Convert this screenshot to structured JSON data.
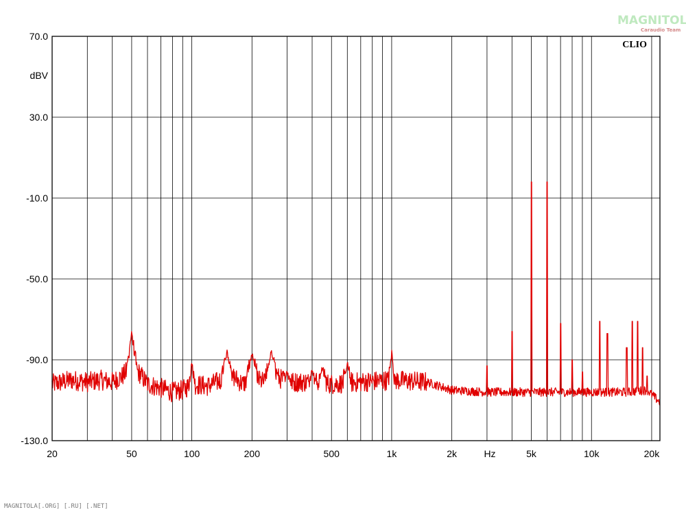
{
  "watermark": {
    "logo": "MAGNITOLA",
    "sub": "Caraudio Team"
  },
  "footer_text": "MAGNITOLA[.ORG] [.RU] [.NET]",
  "colors": {
    "trace": "#e00000",
    "grid": "#000000",
    "background": "#ffffff"
  },
  "chart_data": {
    "type": "line",
    "brand_label": "CLIO",
    "xlabel": "Hz",
    "ylabel": "dBV",
    "x_scale": "log",
    "xlim": [
      20,
      22000
    ],
    "ylim": [
      -130,
      70
    ],
    "grid": true,
    "x_tick_labels": [
      {
        "v": 20,
        "t": "20"
      },
      {
        "v": 50,
        "t": "50"
      },
      {
        "v": 100,
        "t": "100"
      },
      {
        "v": 200,
        "t": "200"
      },
      {
        "v": 500,
        "t": "500"
      },
      {
        "v": 1000,
        "t": "1k"
      },
      {
        "v": 2000,
        "t": "2k"
      },
      {
        "v": 5000,
        "t": "5k"
      },
      {
        "v": 10000,
        "t": "10k"
      },
      {
        "v": 20000,
        "t": "20k"
      }
    ],
    "y_tick_labels": [
      {
        "v": 70,
        "t": "70.0"
      },
      {
        "v": 30,
        "t": "30.0"
      },
      {
        "v": -10,
        "t": "-10.0"
      },
      {
        "v": -50,
        "t": "-50.0"
      },
      {
        "v": -90,
        "t": "-90.0"
      },
      {
        "v": -130,
        "t": "-130.0"
      }
    ],
    "series": [
      {
        "noise_floor": [
          [
            20,
            -102
          ],
          [
            25,
            -100
          ],
          [
            30,
            -101
          ],
          [
            35,
            -100
          ],
          [
            40,
            -101
          ],
          [
            45,
            -98
          ],
          [
            50,
            -93
          ],
          [
            55,
            -97
          ],
          [
            60,
            -102
          ],
          [
            70,
            -104
          ],
          [
            80,
            -106
          ],
          [
            90,
            -105
          ],
          [
            100,
            -102
          ],
          [
            120,
            -103
          ],
          [
            140,
            -100
          ],
          [
            160,
            -98
          ],
          [
            180,
            -102
          ],
          [
            200,
            -99
          ],
          [
            230,
            -101
          ],
          [
            260,
            -98
          ],
          [
            300,
            -101
          ],
          [
            400,
            -101
          ],
          [
            500,
            -102
          ],
          [
            700,
            -101
          ],
          [
            1000,
            -100
          ],
          [
            1500,
            -101
          ],
          [
            2000,
            -105
          ],
          [
            3000,
            -106
          ],
          [
            5000,
            -106
          ],
          [
            10000,
            -106
          ],
          [
            15000,
            -106
          ],
          [
            19000,
            -105
          ],
          [
            22000,
            -111
          ]
        ],
        "peaks": [
          {
            "f": 50,
            "db": -77,
            "w": 2.5
          },
          {
            "f": 100,
            "db": -91,
            "w": 1.5
          },
          {
            "f": 150,
            "db": -86,
            "w": 3
          },
          {
            "f": 200,
            "db": -87,
            "w": 3
          },
          {
            "f": 250,
            "db": -86,
            "w": 3
          },
          {
            "f": 300,
            "db": -96,
            "w": 2
          },
          {
            "f": 400,
            "db": -95,
            "w": 2
          },
          {
            "f": 450,
            "db": -94,
            "w": 2
          },
          {
            "f": 600,
            "db": -92,
            "w": 2
          },
          {
            "f": 1000,
            "db": -86,
            "w": 1.5
          },
          {
            "f": 3000,
            "db": -93,
            "w": 0.2
          },
          {
            "f": 4000,
            "db": -76,
            "w": 0.2
          },
          {
            "f": 5000,
            "db": -2,
            "w": 0.3
          },
          {
            "f": 6000,
            "db": -2,
            "w": 0.3
          },
          {
            "f": 7000,
            "db": -72,
            "w": 0.2
          },
          {
            "f": 8000,
            "db": -90,
            "w": 0.2
          },
          {
            "f": 9000,
            "db": -96,
            "w": 0.2
          },
          {
            "f": 11000,
            "db": -71,
            "w": 0.2
          },
          {
            "f": 12000,
            "db": -77,
            "w": 0.2
          },
          {
            "f": 15000,
            "db": -84,
            "w": 0.2
          },
          {
            "f": 16000,
            "db": -71,
            "w": 0.2
          },
          {
            "f": 17000,
            "db": -71,
            "w": 0.2
          },
          {
            "f": 18000,
            "db": -84,
            "w": 0.2
          },
          {
            "f": 19000,
            "db": -98,
            "w": 0.2
          }
        ]
      }
    ]
  }
}
